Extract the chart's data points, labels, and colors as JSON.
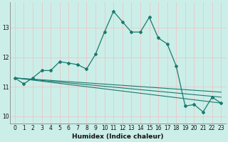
{
  "xlabel": "Humidex (Indice chaleur)",
  "bg_color": "#cceee8",
  "plot_bg_color": "#cceee8",
  "grid_color": "#e8c8c8",
  "line_color": "#1a7a6e",
  "xlim": [
    -0.5,
    23.5
  ],
  "ylim": [
    9.75,
    13.85
  ],
  "yticks": [
    10,
    11,
    12,
    13
  ],
  "xticks": [
    0,
    1,
    2,
    3,
    4,
    5,
    6,
    7,
    8,
    9,
    10,
    11,
    12,
    13,
    14,
    15,
    16,
    17,
    18,
    19,
    20,
    21,
    22,
    23
  ],
  "main_line_x": [
    0,
    1,
    2,
    3,
    4,
    5,
    6,
    7,
    8,
    9,
    10,
    11,
    12,
    13,
    14,
    15,
    16,
    17,
    18,
    19,
    20,
    21,
    22,
    23
  ],
  "main_line_y": [
    11.3,
    11.1,
    11.3,
    11.55,
    11.55,
    11.85,
    11.8,
    11.75,
    11.6,
    12.1,
    12.85,
    13.55,
    13.2,
    12.85,
    12.85,
    13.35,
    12.65,
    12.45,
    11.7,
    10.35,
    10.4,
    10.15,
    10.65,
    10.45
  ],
  "trend_lines": [
    {
      "x": [
        0,
        23
      ],
      "y": [
        11.3,
        10.45
      ]
    },
    {
      "x": [
        0,
        23
      ],
      "y": [
        11.3,
        10.65
      ]
    },
    {
      "x": [
        0,
        23
      ],
      "y": [
        11.3,
        10.82
      ]
    }
  ],
  "spine_color": "#888888",
  "xlabel_fontsize": 6.5,
  "tick_fontsize": 5.5
}
